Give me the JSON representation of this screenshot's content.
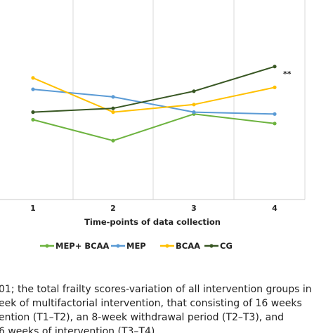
{
  "chart_data": {
    "type": "line",
    "categories": [
      "1",
      "2",
      "3",
      "4"
    ],
    "xlabel": "Time-points of data collection",
    "ylabel": "",
    "title": "",
    "grid": "vertical",
    "legend_position": "bottom",
    "annotation": "**",
    "series": [
      {
        "name": "MEP+ BCAA",
        "color": "#6db33f",
        "values": [
          4.2,
          3.1,
          4.5,
          4.0
        ]
      },
      {
        "name": "MEP",
        "color": "#5b9bd5",
        "values": [
          5.8,
          5.4,
          4.6,
          4.5
        ]
      },
      {
        "name": "BCAA",
        "color": "#ffc000",
        "values": [
          6.4,
          4.6,
          5.0,
          5.9
        ]
      },
      {
        "name": "CG",
        "color": "#385723",
        "values": [
          4.6,
          4.8,
          5.7,
          7.0
        ]
      }
    ]
  },
  "caption": {
    "lines": [
      "01; the total frailty scores-variation of all intervention groups in",
      "eek of multifactorial intervention, that consisting of 16 weeks",
      "ention (T1–T2), an 8-week withdrawal period (T2–T3), and",
      "6 weeks of intervention (T3–T4)."
    ]
  }
}
